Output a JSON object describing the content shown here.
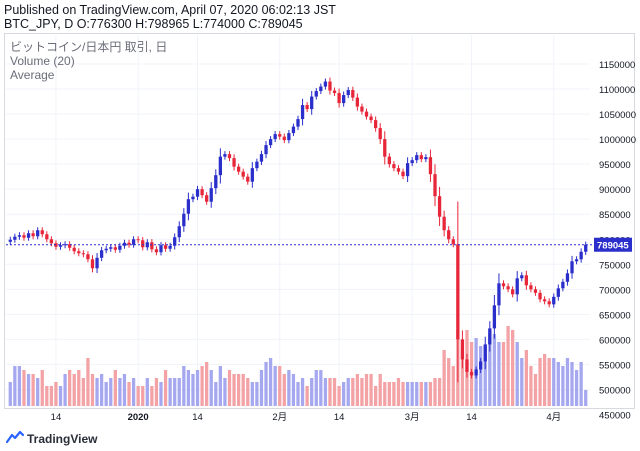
{
  "header": {
    "published": "Published on TradingView.com, April 07, 2020 06:02:13 JST",
    "ohlc": "BTC_JPY, D O:776300 H:798965 L:774000 C:789045"
  },
  "legend": {
    "title": "ビットコイン/日本円 取引, 日",
    "volume": "Volume (20)",
    "average": "Average"
  },
  "branding": {
    "name": "TradingView",
    "icon": "tradingview-logo-icon"
  },
  "colors": {
    "up": "#2a2ecb",
    "down": "#e8263a",
    "vol_up": "#a6a8ef",
    "vol_down": "#f3a2a6",
    "price_line": "#2a2ecb",
    "axis_text": "#131722"
  },
  "chart_data": {
    "type": "candlestick",
    "symbol": "BTC_JPY",
    "interval": "D",
    "last_price": 789045,
    "last_price_label": "789045",
    "ylim": [
      425000,
      1180000
    ],
    "y_ticks": [
      450000,
      500000,
      550000,
      600000,
      650000,
      700000,
      750000,
      800000,
      850000,
      900000,
      950000,
      1000000,
      1050000,
      1100000,
      1150000
    ],
    "y_tick_labels": [
      "450000",
      "500000",
      "550000",
      "600000",
      "650000",
      "700000",
      "750000",
      "800000",
      "850000",
      "900000",
      "950000",
      "1000000",
      "1050000",
      "1100000",
      "1150000"
    ],
    "x_ticks": [
      {
        "label": "14",
        "day": 10
      },
      {
        "label": "2020",
        "day": 28
      },
      {
        "label": "14",
        "day": 41
      },
      {
        "label": "2月",
        "day": 59
      },
      {
        "label": "14",
        "day": 72
      },
      {
        "label": "3月",
        "day": 88
      },
      {
        "label": "14",
        "day": 101
      },
      {
        "label": "4月",
        "day": 119
      }
    ],
    "series_close": [
      799000,
      805000,
      808000,
      803000,
      812000,
      806000,
      818000,
      810000,
      800000,
      792000,
      785000,
      788000,
      790000,
      783000,
      776000,
      772000,
      770000,
      760000,
      742000,
      763000,
      778000,
      781000,
      784000,
      779000,
      787000,
      793000,
      789000,
      800000,
      798000,
      784000,
      794000,
      780000,
      774000,
      788000,
      781000,
      787000,
      804000,
      826000,
      851000,
      880000,
      885000,
      900000,
      888000,
      875000,
      902000,
      928000,
      965000,
      970000,
      962000,
      945000,
      935000,
      925000,
      915000,
      942000,
      955000,
      970000,
      988000,
      1000000,
      1010000,
      1005000,
      998000,
      1012000,
      1025000,
      1040000,
      1068000,
      1060000,
      1085000,
      1096000,
      1105000,
      1115000,
      1097000,
      1092000,
      1072000,
      1088000,
      1098000,
      1083000,
      1065000,
      1055000,
      1045000,
      1038000,
      1022000,
      1000000,
      965000,
      950000,
      942000,
      935000,
      926000,
      952000,
      958000,
      968000,
      960000,
      964000,
      930000,
      886000,
      845000,
      818000,
      800000,
      790000,
      600000,
      560000,
      535000,
      528000,
      540000,
      556000,
      590000,
      622000,
      668000,
      712000,
      706000,
      700000,
      690000,
      722000,
      728000,
      708000,
      700000,
      693000,
      680000,
      676000,
      670000,
      685000,
      702000,
      715000,
      732000,
      756000,
      760000,
      775000,
      789045
    ],
    "series_volume": [
      6,
      10,
      10,
      9,
      8,
      8,
      7,
      9,
      5,
      5,
      6,
      5,
      8,
      9,
      8,
      9,
      7,
      12,
      8,
      7,
      8,
      6,
      7,
      9,
      7,
      8,
      6,
      7,
      5,
      5,
      7,
      5,
      7,
      6,
      9,
      7,
      7,
      7,
      10,
      9,
      8,
      9,
      10,
      11,
      9,
      6,
      10,
      7,
      9,
      8,
      8,
      8,
      7,
      6,
      6,
      9,
      11,
      12,
      10,
      10,
      8,
      9,
      8,
      6,
      7,
      5,
      7,
      9,
      9,
      7,
      7,
      7,
      5,
      6,
      7,
      7,
      8,
      7,
      8,
      8,
      5,
      8,
      6,
      6,
      6,
      7,
      6,
      6,
      6,
      6,
      6,
      6,
      6,
      7,
      7,
      14,
      12,
      10,
      19,
      14,
      19,
      16,
      17,
      15,
      15,
      18,
      18,
      16,
      16,
      20,
      19,
      16,
      12,
      14,
      10,
      8,
      12,
      13,
      12,
      12,
      11,
      10,
      12,
      11,
      9,
      11,
      4
    ]
  }
}
